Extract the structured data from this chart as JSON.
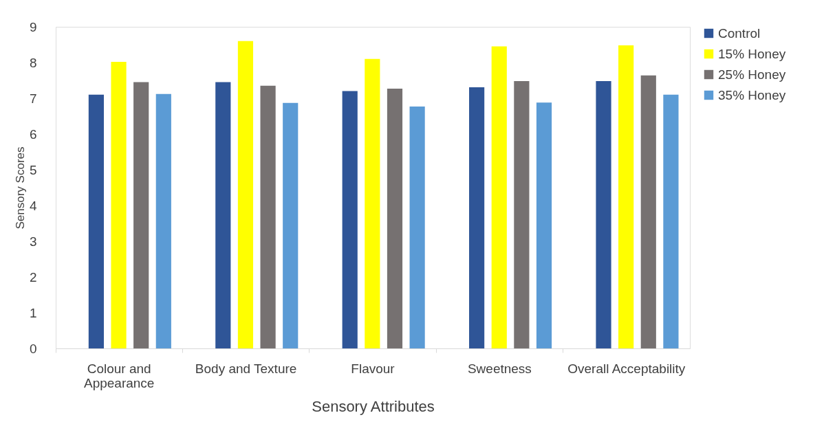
{
  "chart_data": {
    "type": "bar",
    "xlabel": "Sensory Attributes",
    "ylabel": "Sensory Scores",
    "categories": [
      "Colour and Appearance",
      "Body and Texture",
      "Flavour",
      "Sweetness",
      "Overall Acceptability"
    ],
    "series": [
      {
        "name": "Control",
        "color": "#2f5597",
        "values": [
          7.1,
          7.45,
          7.2,
          7.31,
          7.48
        ]
      },
      {
        "name": "15% Honey",
        "color": "#ffff00",
        "values": [
          8.02,
          8.6,
          8.1,
          8.45,
          8.48
        ]
      },
      {
        "name": "25% Honey",
        "color": "#767171",
        "values": [
          7.45,
          7.35,
          7.27,
          7.48,
          7.64
        ]
      },
      {
        "name": "35% Honey",
        "color": "#5b9bd5",
        "values": [
          7.12,
          6.87,
          6.77,
          6.88,
          7.1
        ]
      }
    ],
    "ylim": [
      0,
      9
    ],
    "yticks": [
      0,
      1,
      2,
      3,
      4,
      5,
      6,
      7,
      8,
      9
    ],
    "grid": false,
    "legend": "right"
  }
}
